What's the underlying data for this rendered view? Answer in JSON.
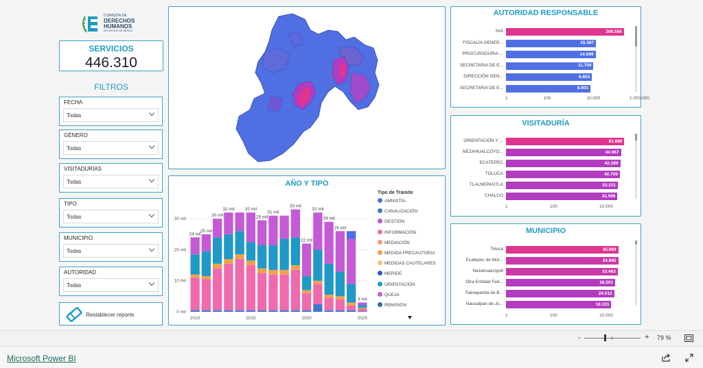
{
  "logo": {
    "line1": "COMISIÓN DE",
    "line2": "DERECHOS",
    "line3": "HUMANOS",
    "line4": "DEL ESTADO DE MÉXICO"
  },
  "kpi": {
    "label": "SERVICIOS",
    "value": "446.310"
  },
  "filters": {
    "title": "FILTROS",
    "items": [
      {
        "label": "FECHA",
        "value": "Todas"
      },
      {
        "label": "GÉNERO",
        "value": "Todas"
      },
      {
        "label": "VISITADURÍAS",
        "value": "Todas"
      },
      {
        "label": "TIPO",
        "value": "Todas"
      },
      {
        "label": "MUNICIPIO",
        "value": "Todas"
      },
      {
        "label": "AUTORIDAD",
        "value": "Todas"
      }
    ],
    "reset_label": "Restablecer reporte"
  },
  "autoridad": {
    "title": "AUTORIDAD RESPONSABLE",
    "rows": [
      {
        "name": "N/A",
        "value": "306.566",
        "v": 306566,
        "color": "#e0358f"
      },
      {
        "name": "FISCALÍA GENER...",
        "value": "15.387",
        "v": 15387,
        "color": "#4f6fe3"
      },
      {
        "name": "PROCURADURIA ...",
        "value": "14.699",
        "v": 14699,
        "color": "#4f6fe3"
      },
      {
        "name": "SECRETARIA DE E...",
        "value": "11.709",
        "v": 11709,
        "color": "#4f6fe3"
      },
      {
        "name": "DIRECCIÓN GEN...",
        "value": "9.853",
        "v": 9853,
        "color": "#4f6fe3"
      },
      {
        "name": "SECRETARIA DE E...",
        "value": "8.601",
        "v": 8601,
        "color": "#4f6fe3"
      }
    ],
    "axis": [
      "1",
      "100",
      "10.000",
      "1.000.000"
    ]
  },
  "visitaduria": {
    "title": "VISITADURÍA",
    "rows": [
      {
        "name": "ORIENTACIÓN Y ...",
        "value": "61.680",
        "v": 61680,
        "color": "#e0358f"
      },
      {
        "name": "NEZAHUALCÓYO...",
        "value": "44.967",
        "v": 44967,
        "color": "#b23bbf"
      },
      {
        "name": "ECATEPEC",
        "value": "42.289",
        "v": 42289,
        "color": "#b23bbf"
      },
      {
        "name": "TOLUCA",
        "value": "40.709",
        "v": 40709,
        "color": "#b23bbf"
      },
      {
        "name": "TLALNEPANTLA",
        "value": "33.211",
        "v": 33211,
        "color": "#b23bbf"
      },
      {
        "name": "CHALCO",
        "value": "32.596",
        "v": 32596,
        "color": "#b23bbf"
      }
    ],
    "axis": [
      "1",
      "100",
      "10.000"
    ]
  },
  "municipio": {
    "title": "MUNICIPIO",
    "rows": [
      {
        "name": "Toluca",
        "value": "35.069",
        "v": 35069,
        "color": "#e0358f"
      },
      {
        "name": "Ecatepec de Mor...",
        "value": "34.895",
        "v": 34895,
        "color": "#c93aa8"
      },
      {
        "name": "Nezahualcóyotl",
        "value": "33.463",
        "v": 33463,
        "color": "#c93aa8"
      },
      {
        "name": "Otra Entidad Fed...",
        "value": "26.501",
        "v": 26501,
        "color": "#b23bbf"
      },
      {
        "name": "Tlalnepantla de B...",
        "value": "24.012",
        "v": 24012,
        "color": "#b23bbf"
      },
      {
        "name": "Naucalpan de Ju...",
        "value": "18.331",
        "v": 18331,
        "color": "#b23bbf"
      }
    ],
    "axis": [
      "1",
      "100",
      "10.000"
    ]
  },
  "chart_data": {
    "type": "bar",
    "title": "AÑO Y TIPO",
    "legend_title": "Tipo de Trámite",
    "legend_position": "right",
    "categories": [
      "2010",
      "2011",
      "2012",
      "2013",
      "2014",
      "2015",
      "2016",
      "2017",
      "2018",
      "2019",
      "2020",
      "2021",
      "2022",
      "2023",
      "2024",
      "2025"
    ],
    "x_ticks": [
      "2010",
      "2015",
      "2020",
      "2025"
    ],
    "y_ticks": [
      "0 mil",
      "10 mil",
      "20 mil",
      "30 mil"
    ],
    "ylim": [
      0,
      36000
    ],
    "totals_labels": [
      "24 mil",
      "25 mil",
      "30 mil",
      "32 mil",
      "",
      "32 mil",
      "29 mil",
      "31 mil",
      "",
      "33 mil",
      "22 mil",
      "32 mil",
      "29 mil",
      "26 mil",
      "",
      "3 mil"
    ],
    "series": [
      {
        "name": "AMNISTÍA",
        "color": "#4f6fe3",
        "values": [
          0,
          0,
          0,
          0,
          0,
          0,
          0,
          0,
          0,
          0,
          0,
          0,
          0,
          0,
          2500,
          0
        ]
      },
      {
        "name": "CANALIZACIÓN",
        "color": "#3f77d6",
        "values": [
          500,
          500,
          500,
          500,
          500,
          500,
          500,
          500,
          500,
          500,
          500,
          2500,
          500,
          500,
          500,
          200
        ]
      },
      {
        "name": "GESTIÓN",
        "color": "#b55ad6",
        "values": [
          0,
          0,
          0,
          0,
          0,
          0,
          0,
          0,
          0,
          0,
          0,
          0,
          0,
          0,
          0,
          0
        ]
      },
      {
        "name": "INFORMACIÓN",
        "color": "#f06aae",
        "values": [
          10500,
          10000,
          13500,
          15000,
          16500,
          14500,
          12000,
          11500,
          11500,
          13000,
          5500,
          6500,
          4000,
          3500,
          1500,
          800
        ]
      },
      {
        "name": "MEDIACIÓN",
        "color": "#f29a7c",
        "values": [
          0,
          0,
          0,
          0,
          0,
          0,
          0,
          0,
          0,
          0,
          0,
          0,
          0,
          0,
          0,
          0
        ]
      },
      {
        "name": "MEDIDA PRECAUTORIA",
        "color": "#f0a24a",
        "values": [
          1000,
          1000,
          1500,
          1500,
          1500,
          1500,
          1500,
          1500,
          1500,
          1500,
          1000,
          1000,
          1000,
          1000,
          1000,
          300
        ]
      },
      {
        "name": "MEDIDAS CAUTELARES",
        "color": "#f5c470",
        "values": [
          0,
          0,
          0,
          0,
          0,
          0,
          0,
          0,
          0,
          0,
          0,
          0,
          0,
          0,
          0,
          0
        ]
      },
      {
        "name": "MERIDE",
        "color": "#2a5bc8",
        "values": [
          0,
          0,
          0,
          0,
          0,
          0,
          0,
          0,
          0,
          0,
          0,
          0,
          0,
          0,
          0,
          0
        ]
      },
      {
        "name": "ORIENTACIÓN",
        "color": "#2099c8",
        "values": [
          6500,
          8000,
          8500,
          8000,
          7500,
          6000,
          7500,
          8000,
          10000,
          9000,
          4500,
          10000,
          10000,
          8000,
          6000,
          900
        ]
      },
      {
        "name": "QUEJA",
        "color": "#c55ad6",
        "values": [
          5500,
          5500,
          6000,
          7000,
          6000,
          9500,
          8000,
          9500,
          7500,
          9000,
          10500,
          12000,
          13500,
          13000,
          14500,
          800
        ]
      },
      {
        "name": "REMISIÓN",
        "color": "#2a6fa8",
        "values": [
          0,
          0,
          0,
          0,
          0,
          0,
          0,
          0,
          0,
          0,
          0,
          0,
          0,
          0,
          0,
          0
        ]
      }
    ]
  },
  "zoom": {
    "minus": "-",
    "plus": "+",
    "level": "79 %"
  },
  "footer": {
    "brand": "Microsoft Power BI"
  }
}
